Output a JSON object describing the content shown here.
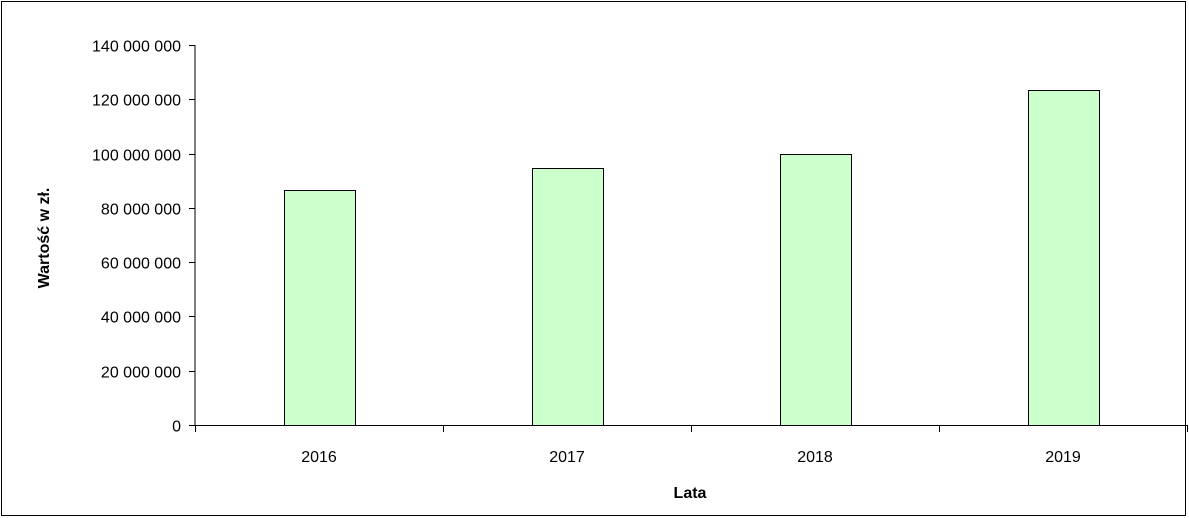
{
  "chart_data": {
    "type": "bar",
    "categories": [
      "2016",
      "2017",
      "2018",
      "2019"
    ],
    "values": [
      86500000,
      94700000,
      99900000,
      123600000
    ],
    "title": "",
    "xlabel": "Lata",
    "ylabel": "Wartość w zł.",
    "ylim": [
      0,
      140000000
    ],
    "yticks": [
      0,
      20000000,
      40000000,
      60000000,
      80000000,
      100000000,
      120000000,
      140000000
    ],
    "ytick_labels": [
      "0",
      "20 000 000",
      "40 000 000",
      "60 000 000",
      "80 000 000",
      "100 000 000",
      "120 000 000",
      "140 000 000"
    ],
    "grid": false,
    "legend": "none",
    "bar_color": "#ccffcc",
    "bar_edge_color": "#000000"
  }
}
